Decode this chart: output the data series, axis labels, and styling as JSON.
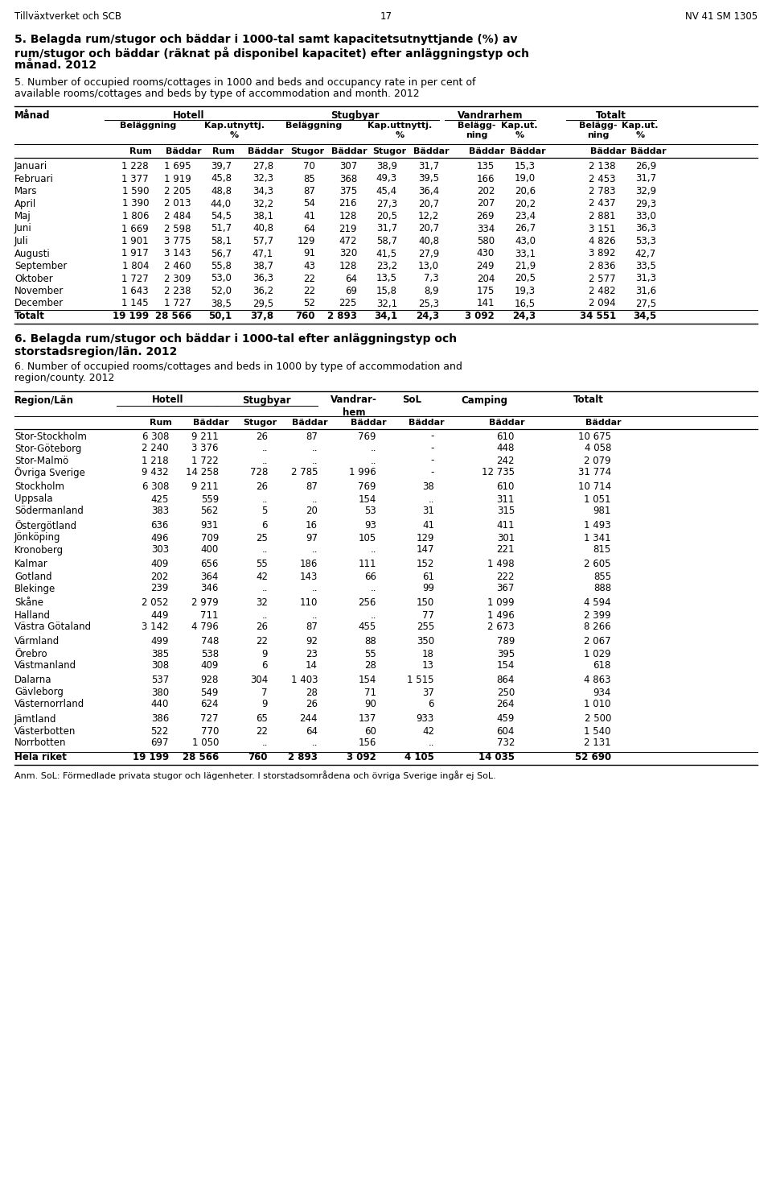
{
  "header_left": "Tillväxtverket och SCB",
  "header_center": "17",
  "header_right": "NV 41 SM 1305",
  "title_sv_line1": "5. Belagda rum/stugor och bäddar i 1000-tal samt kapacitetsutnyttjande (%) av",
  "title_sv_line2": "rum/stugor och bäddar (räknat på disponibel kapacitet) efter anläggningstyp och",
  "title_sv_line3": "månad. 2012",
  "title_en_line1": "5. Number of occupied rooms/cottages in 1000 and beds and occupancy rate in per cent of",
  "title_en_line2": "available rooms/cottages and beds by type of accommodation and month. 2012",
  "table1_data": [
    [
      "Januari",
      "1 228",
      "1 695",
      "39,7",
      "27,8",
      "70",
      "307",
      "38,9",
      "31,7",
      "135",
      "15,3",
      "2 138",
      "26,9"
    ],
    [
      "Februari",
      "1 377",
      "1 919",
      "45,8",
      "32,3",
      "85",
      "368",
      "49,3",
      "39,5",
      "166",
      "19,0",
      "2 453",
      "31,7"
    ],
    [
      "Mars",
      "1 590",
      "2 205",
      "48,8",
      "34,3",
      "87",
      "375",
      "45,4",
      "36,4",
      "202",
      "20,6",
      "2 783",
      "32,9"
    ],
    [
      "April",
      "1 390",
      "2 013",
      "44,0",
      "32,2",
      "54",
      "216",
      "27,3",
      "20,7",
      "207",
      "20,2",
      "2 437",
      "29,3"
    ],
    [
      "Maj",
      "1 806",
      "2 484",
      "54,5",
      "38,1",
      "41",
      "128",
      "20,5",
      "12,2",
      "269",
      "23,4",
      "2 881",
      "33,0"
    ],
    [
      "Juni",
      "1 669",
      "2 598",
      "51,7",
      "40,8",
      "64",
      "219",
      "31,7",
      "20,7",
      "334",
      "26,7",
      "3 151",
      "36,3"
    ],
    [
      "Juli",
      "1 901",
      "3 775",
      "58,1",
      "57,7",
      "129",
      "472",
      "58,7",
      "40,8",
      "580",
      "43,0",
      "4 826",
      "53,3"
    ],
    [
      "Augusti",
      "1 917",
      "3 143",
      "56,7",
      "47,1",
      "91",
      "320",
      "41,5",
      "27,9",
      "430",
      "33,1",
      "3 892",
      "42,7"
    ],
    [
      "September",
      "1 804",
      "2 460",
      "55,8",
      "38,7",
      "43",
      "128",
      "23,2",
      "13,0",
      "249",
      "21,9",
      "2 836",
      "33,5"
    ],
    [
      "Oktober",
      "1 727",
      "2 309",
      "53,0",
      "36,3",
      "22",
      "64",
      "13,5",
      "7,3",
      "204",
      "20,5",
      "2 577",
      "31,3"
    ],
    [
      "November",
      "1 643",
      "2 238",
      "52,0",
      "36,2",
      "22",
      "69",
      "15,8",
      "8,9",
      "175",
      "19,3",
      "2 482",
      "31,6"
    ],
    [
      "December",
      "1 145",
      "1 727",
      "38,5",
      "29,5",
      "52",
      "225",
      "32,1",
      "25,3",
      "141",
      "16,5",
      "2 094",
      "27,5"
    ],
    [
      "Totalt",
      "19 199",
      "28 566",
      "50,1",
      "37,8",
      "760",
      "2 893",
      "34,1",
      "24,3",
      "3 092",
      "24,3",
      "34 551",
      "34,5"
    ]
  ],
  "title6_sv_line1": "6. Belagda rum/stugor och bäddar i 1000-tal efter anläggningstyp och",
  "title6_sv_line2": "storstadsregion/län. 2012",
  "title6_en_line1": "6. Number of occupied rooms/cottages and beds in 1000 by type of accommodation and",
  "title6_en_line2": "region/county. 2012",
  "table2_data": [
    [
      "Stor-Stockholm",
      "6 308",
      "9 211",
      "26",
      "87",
      "769",
      "-",
      "610",
      "10 675"
    ],
    [
      "Stor-Göteborg",
      "2 240",
      "3 376",
      "..",
      "..",
      "..",
      "-",
      "448",
      "4 058"
    ],
    [
      "Stor-Malmö",
      "1 218",
      "1 722",
      "..",
      "..",
      "..",
      "-",
      "242",
      "2 079"
    ],
    [
      "Övriga Sverige",
      "9 432",
      "14 258",
      "728",
      "2 785",
      "1 996",
      "-",
      "12 735",
      "31 774"
    ],
    [
      "Stockholm",
      "6 308",
      "9 211",
      "26",
      "87",
      "769",
      "38",
      "610",
      "10 714"
    ],
    [
      "Uppsala",
      "425",
      "559",
      "..",
      "..",
      "154",
      "..",
      "311",
      "1 051"
    ],
    [
      "Södermanland",
      "383",
      "562",
      "5",
      "20",
      "53",
      "31",
      "315",
      "981"
    ],
    [
      "Östergötland",
      "636",
      "931",
      "6",
      "16",
      "93",
      "41",
      "411",
      "1 493"
    ],
    [
      "Jönköping",
      "496",
      "709",
      "25",
      "97",
      "105",
      "129",
      "301",
      "1 341"
    ],
    [
      "Kronoberg",
      "303",
      "400",
      "..",
      "..",
      "..",
      "147",
      "221",
      "815"
    ],
    [
      "Kalmar",
      "409",
      "656",
      "55",
      "186",
      "111",
      "152",
      "1 498",
      "2 605"
    ],
    [
      "Gotland",
      "202",
      "364",
      "42",
      "143",
      "66",
      "61",
      "222",
      "855"
    ],
    [
      "Blekinge",
      "239",
      "346",
      "..",
      "..",
      "..",
      "99",
      "367",
      "888"
    ],
    [
      "Skåne",
      "2 052",
      "2 979",
      "32",
      "110",
      "256",
      "150",
      "1 099",
      "4 594"
    ],
    [
      "Halland",
      "449",
      "711",
      "..",
      "..",
      "..",
      "77",
      "1 496",
      "2 399"
    ],
    [
      "Västra Götaland",
      "3 142",
      "4 796",
      "26",
      "87",
      "455",
      "255",
      "2 673",
      "8 266"
    ],
    [
      "Värmland",
      "499",
      "748",
      "22",
      "92",
      "88",
      "350",
      "789",
      "2 067"
    ],
    [
      "Örebro",
      "385",
      "538",
      "9",
      "23",
      "55",
      "18",
      "395",
      "1 029"
    ],
    [
      "Västmanland",
      "308",
      "409",
      "6",
      "14",
      "28",
      "13",
      "154",
      "618"
    ],
    [
      "Dalarna",
      "537",
      "928",
      "304",
      "1 403",
      "154",
      "1 515",
      "864",
      "4 863"
    ],
    [
      "Gävleborg",
      "380",
      "549",
      "7",
      "28",
      "71",
      "37",
      "250",
      "934"
    ],
    [
      "Västernorrland",
      "440",
      "624",
      "9",
      "26",
      "90",
      "6",
      "264",
      "1 010"
    ],
    [
      "Jämtland",
      "386",
      "727",
      "65",
      "244",
      "137",
      "933",
      "459",
      "2 500"
    ],
    [
      "Västerbotten",
      "522",
      "770",
      "22",
      "64",
      "60",
      "42",
      "604",
      "1 540"
    ],
    [
      "Norrbotten",
      "697",
      "1 050",
      "..",
      "..",
      "156",
      "..",
      "732",
      "2 131"
    ],
    [
      "Hela riket",
      "19 199",
      "28 566",
      "760",
      "2 893",
      "3 092",
      "4 105",
      "14 035",
      "52 690"
    ]
  ],
  "footnote": "Anm. SoL: Förmedlade privata stugor och lägenheter. I storstadsområdena och övriga Sverige ingår ej SoL.",
  "bg_color": "#ffffff"
}
